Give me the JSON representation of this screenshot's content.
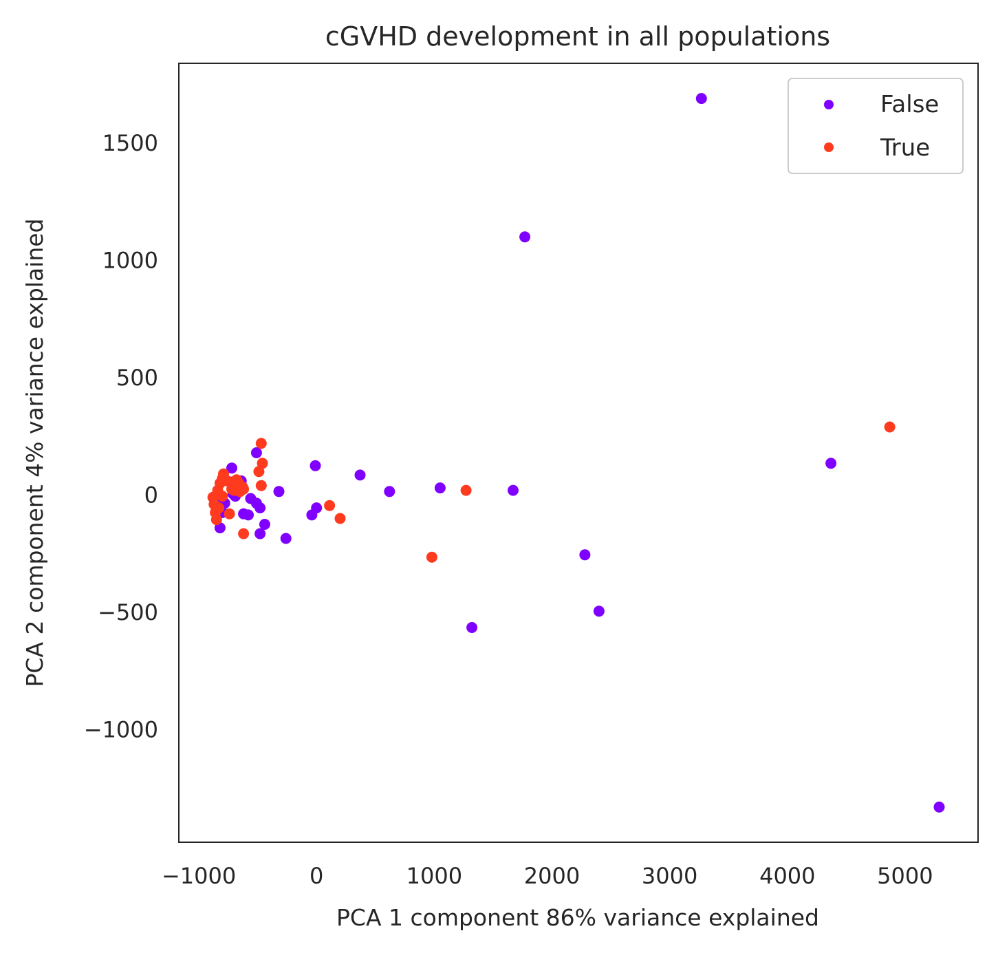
{
  "chart_data": {
    "type": "scatter",
    "title": "cGVHD development in  all populations",
    "xlabel": "PCA 1 component 86% variance explained",
    "ylabel": "PCA 2 component 4% variance explained",
    "xlim": [
      -1170,
      5620
    ],
    "ylim": [
      -1480,
      1840
    ],
    "xticks": [
      -1000,
      0,
      1000,
      2000,
      3000,
      4000,
      5000
    ],
    "xtick_labels": [
      "−1000",
      "0",
      "1000",
      "2000",
      "3000",
      "4000",
      "5000"
    ],
    "yticks": [
      -1000,
      -500,
      0,
      500,
      1000,
      1500
    ],
    "ytick_labels": [
      "−1000",
      "−500",
      "0",
      "500",
      "1000",
      "1500"
    ],
    "grid": false,
    "legend_position": "top-right",
    "series": [
      {
        "name": "False",
        "color": "#7f00ff",
        "points": [
          [
            3270,
            1690
          ],
          [
            1770,
            1100
          ],
          [
            5290,
            -1330
          ],
          [
            4370,
            135
          ],
          [
            2280,
            -255
          ],
          [
            2400,
            -495
          ],
          [
            1320,
            -565
          ],
          [
            1670,
            20
          ],
          [
            1050,
            30
          ],
          [
            620,
            15
          ],
          [
            370,
            85
          ],
          [
            -10,
            125
          ],
          [
            0,
            -55
          ],
          [
            -40,
            -85
          ],
          [
            -320,
            15
          ],
          [
            -260,
            -185
          ],
          [
            -440,
            -125
          ],
          [
            -480,
            -165
          ],
          [
            -480,
            -55
          ],
          [
            -510,
            -35
          ],
          [
            -560,
            -15
          ],
          [
            -580,
            -85
          ],
          [
            -620,
            -80
          ],
          [
            -640,
            60
          ],
          [
            -690,
            -5
          ],
          [
            -710,
            5
          ],
          [
            -720,
            115
          ],
          [
            -730,
            55
          ],
          [
            -780,
            -35
          ],
          [
            -800,
            -75
          ],
          [
            -820,
            -140
          ],
          [
            -840,
            0
          ],
          [
            -860,
            -30
          ],
          [
            -510,
            180
          ]
        ]
      },
      {
        "name": "True",
        "color": "#ff3b1f",
        "points": [
          [
            4870,
            290
          ],
          [
            1270,
            20
          ],
          [
            980,
            -265
          ],
          [
            200,
            -100
          ],
          [
            110,
            -45
          ],
          [
            -460,
            135
          ],
          [
            -470,
            40
          ],
          [
            -470,
            220
          ],
          [
            -490,
            100
          ],
          [
            -620,
            -165
          ],
          [
            -620,
            25
          ],
          [
            -630,
            35
          ],
          [
            -650,
            15
          ],
          [
            -660,
            50
          ],
          [
            -680,
            65
          ],
          [
            -690,
            35
          ],
          [
            -700,
            20
          ],
          [
            -720,
            25
          ],
          [
            -740,
            -80
          ],
          [
            -760,
            60
          ],
          [
            -790,
            90
          ],
          [
            -800,
            70
          ],
          [
            -800,
            -5
          ],
          [
            -820,
            50
          ],
          [
            -830,
            -55
          ],
          [
            -850,
            -105
          ],
          [
            -860,
            -75
          ],
          [
            -870,
            -40
          ],
          [
            -880,
            -10
          ],
          [
            -840,
            20
          ]
        ]
      }
    ]
  }
}
